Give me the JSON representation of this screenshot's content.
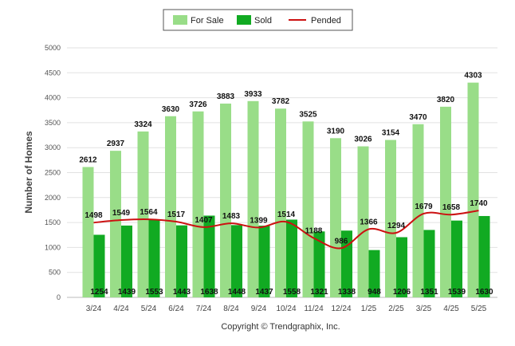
{
  "chart_data": {
    "type": "bar",
    "categories": [
      "3/24",
      "4/24",
      "5/24",
      "6/24",
      "7/24",
      "8/24",
      "9/24",
      "10/24",
      "11/24",
      "12/24",
      "1/25",
      "2/25",
      "3/25",
      "4/25",
      "5/25"
    ],
    "series": [
      {
        "name": "For Sale",
        "kind": "bar",
        "color": "#99dd88",
        "values": [
          2612,
          2937,
          3324,
          3630,
          3726,
          3883,
          3933,
          3782,
          3525,
          3190,
          3026,
          3154,
          3470,
          3820,
          4303
        ]
      },
      {
        "name": "Sold",
        "kind": "bar",
        "color": "#11aa22",
        "values": [
          1254,
          1439,
          1553,
          1443,
          1638,
          1448,
          1437,
          1558,
          1321,
          1338,
          948,
          1206,
          1351,
          1539,
          1630
        ]
      },
      {
        "name": "Pended",
        "kind": "line",
        "color": "#cc1111",
        "values": [
          1498,
          1549,
          1564,
          1517,
          1407,
          1483,
          1399,
          1514,
          1188,
          986,
          1366,
          1294,
          1679,
          1658,
          1740
        ]
      }
    ],
    "ylabel": "Number of Homes",
    "xlabel": "",
    "ylim": [
      0,
      5000
    ],
    "yticks": [
      0,
      500,
      1000,
      1500,
      2000,
      2500,
      3000,
      3500,
      4000,
      4500,
      5000
    ],
    "grid": true,
    "legend_position": "top-center"
  },
  "footer": {
    "copyright": "Copyright © Trendgraphix, Inc."
  }
}
